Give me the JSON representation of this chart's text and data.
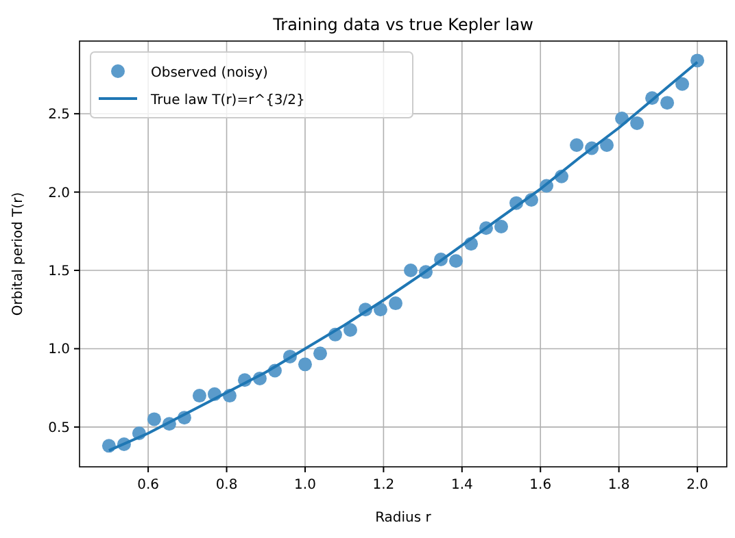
{
  "chart_data": {
    "type": "scatter",
    "title": "Training data vs true Kepler law",
    "xlabel": "Radius r",
    "ylabel": "Orbital period T(r)",
    "xlim": [
      0.425,
      2.075
    ],
    "ylim": [
      0.246,
      2.964
    ],
    "xticks": [
      0.6,
      0.8,
      {
        "value": 1,
        "label": "1.0"
      },
      1.2,
      1.4,
      1.6,
      1.8,
      {
        "value": 2,
        "label": "2.0"
      }
    ],
    "yticks": [
      0.5,
      {
        "value": 1,
        "label": "1.0"
      },
      1.5,
      {
        "value": 2,
        "label": "2.0"
      },
      2.5
    ],
    "grid": true,
    "legend": "top left",
    "series": [
      {
        "name": "Observed (noisy)",
        "marker": "circle",
        "color": "#5b9bcb",
        "x": [
          0.5,
          0.5385,
          0.5769,
          0.6154,
          0.6538,
          0.6923,
          0.7308,
          0.7692,
          0.8077,
          0.8462,
          0.8846,
          0.9231,
          0.9615,
          1.0,
          1.0385,
          1.0769,
          1.1154,
          1.1538,
          1.1923,
          1.2308,
          1.2692,
          1.3077,
          1.3462,
          1.3846,
          1.4231,
          1.4615,
          1.5,
          1.5385,
          1.5769,
          1.6154,
          1.6538,
          1.6923,
          1.7308,
          1.7692,
          1.8077,
          1.8462,
          1.8846,
          1.9231,
          1.9615,
          2.0
        ],
        "values": [
          0.38,
          0.39,
          0.46,
          0.55,
          0.52,
          0.56,
          0.7,
          0.71,
          0.7,
          0.8,
          0.81,
          0.86,
          0.95,
          0.9,
          0.97,
          1.09,
          1.12,
          1.25,
          1.25,
          1.29,
          1.5,
          1.49,
          1.57,
          1.56,
          1.67,
          1.77,
          1.78,
          1.93,
          1.95,
          2.04,
          2.1,
          2.3,
          2.28,
          2.3,
          2.47,
          2.44,
          2.6,
          2.57,
          2.69,
          2.84
        ]
      },
      {
        "name": "True law T(r)=r^{3/2}",
        "type": "line",
        "line_style": "solid",
        "color": "#1f77b4",
        "x": [
          0.5,
          0.6,
          0.7,
          0.8,
          0.9,
          1.0,
          1.1,
          1.2,
          1.3,
          1.4,
          1.5,
          1.6,
          1.7,
          1.8,
          1.9,
          2.0
        ],
        "values": [
          0.35,
          0.46,
          0.59,
          0.72,
          0.85,
          1.0,
          1.15,
          1.31,
          1.48,
          1.66,
          1.84,
          2.02,
          2.22,
          2.41,
          2.62,
          2.83
        ]
      }
    ]
  }
}
